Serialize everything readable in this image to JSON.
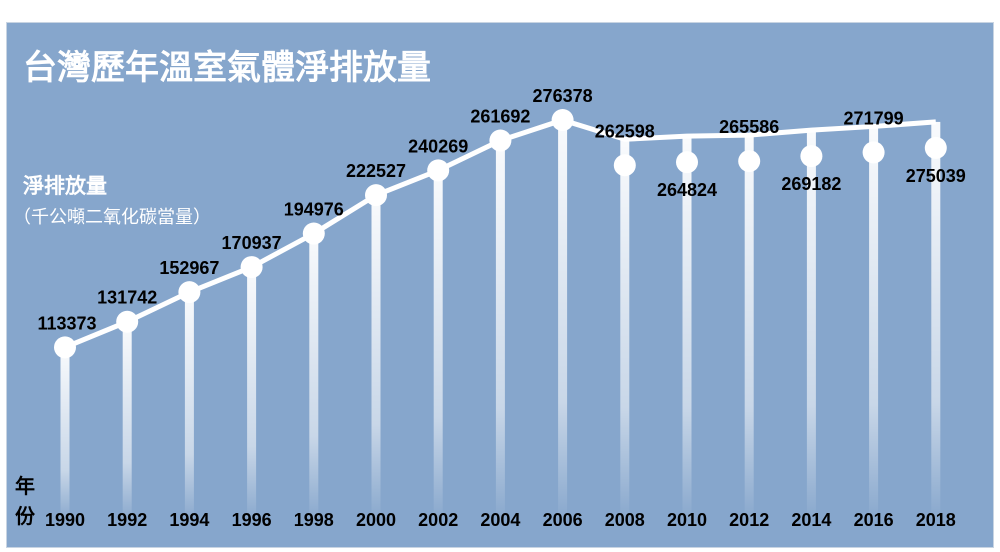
{
  "chart_data": {
    "type": "line",
    "title": "台灣歷年溫室氣體淨排放量",
    "ylabel": "淨排放量",
    "yunit": "（千公噸二氧化碳當量）",
    "xlabel": "年份",
    "categories": [
      "1990",
      "1992",
      "1994",
      "1996",
      "1998",
      "2000",
      "2002",
      "2004",
      "2006",
      "2008",
      "2010",
      "2012",
      "2014",
      "2016",
      "2018"
    ],
    "values": [
      113373,
      131742,
      152967,
      170937,
      194976,
      222527,
      240269,
      261692,
      276378,
      262598,
      264824,
      265586,
      269182,
      271799,
      275039
    ],
    "grid": false,
    "legend": "none",
    "colors": {
      "background": "#86a6cc",
      "line": "#ffffff",
      "marker": "#ffffff",
      "text": "#000000"
    }
  }
}
